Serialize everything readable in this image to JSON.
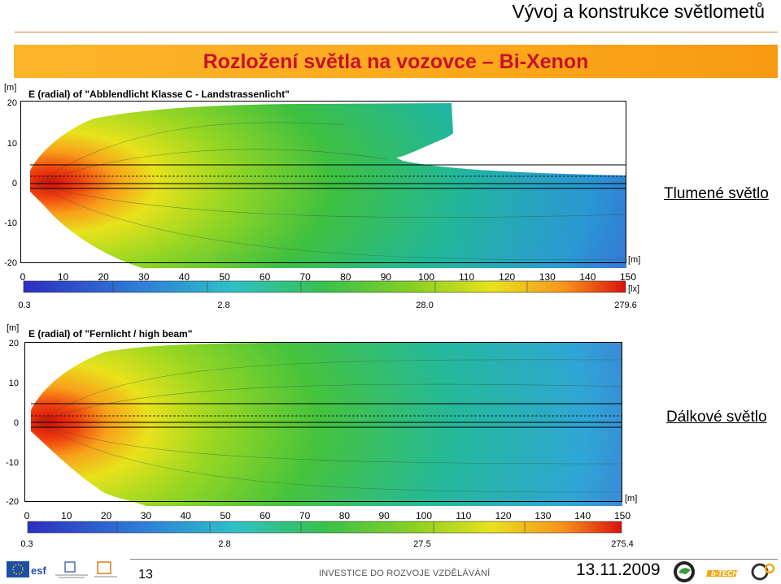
{
  "slide": {
    "title": "Vývoj a konstrukce světlometů",
    "subtitle": "Rozložení světla na vozovce – Bi-Xenon"
  },
  "plots": [
    {
      "id": "low",
      "title": "E (radial) of \"Abblendlicht Klasse C - Landstrassenlicht\"",
      "y_unit": "[m]",
      "x_unit": "[m]",
      "color_unit": "[lx]",
      "y_ticks": [
        "20",
        "10",
        "0",
        "-10",
        "-20"
      ],
      "x_ticks": [
        "0",
        "10",
        "20",
        "30",
        "40",
        "50",
        "60",
        "70",
        "80",
        "90",
        "100",
        "110",
        "120",
        "130",
        "140",
        "150"
      ],
      "color_ticks": [
        "0.3",
        "2.8",
        "28.0",
        "279.6"
      ],
      "side_label": "Tlumené světlo"
    },
    {
      "id": "high",
      "title": "E (radial) of \"Fernlicht / high beam\"",
      "y_unit": "[m]",
      "x_unit": "[m]",
      "color_unit": "[lx]",
      "y_ticks": [
        "20",
        "10",
        "0",
        "-10",
        "-20"
      ],
      "x_ticks": [
        "0",
        "10",
        "20",
        "30",
        "40",
        "50",
        "60",
        "70",
        "80",
        "90",
        "100",
        "110",
        "120",
        "130",
        "140",
        "150"
      ],
      "color_ticks": [
        "0.3",
        "2.8",
        "27.5",
        "275.4"
      ],
      "side_label": "Dálkové světlo"
    }
  ],
  "footer": {
    "page_number": "13",
    "text": "INVESTICE DO ROZVOJE VZDĚLÁVÁNÍ",
    "date": "13.11.2009"
  },
  "colors": {
    "title_bar": "#fdb21a",
    "subtitle_text": "#c8102e",
    "rule": "#d08a2c"
  }
}
